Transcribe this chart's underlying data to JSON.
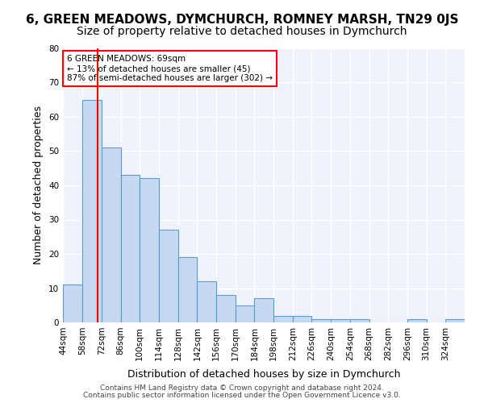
{
  "title_line1": "6, GREEN MEADOWS, DYMCHURCH, ROMNEY MARSH, TN29 0JS",
  "title_line2": "Size of property relative to detached houses in Dymchurch",
  "xlabel": "Distribution of detached houses by size in Dymchurch",
  "ylabel": "Number of detached properties",
  "categories": [
    "44sqm",
    "58sqm",
    "72sqm",
    "86sqm",
    "100sqm",
    "114sqm",
    "128sqm",
    "142sqm",
    "156sqm",
    "170sqm",
    "184sqm",
    "198sqm",
    "212sqm",
    "226sqm",
    "240sqm",
    "254sqm",
    "268sqm",
    "282sqm",
    "296sqm",
    "310sqm",
    "324sqm"
  ],
  "bar_values": [
    11,
    65,
    51,
    43,
    42,
    27,
    19,
    12,
    8,
    5,
    7,
    2,
    2,
    1,
    1,
    1,
    0,
    0,
    1,
    0,
    1
  ],
  "bar_color": "#c6d9f1",
  "bar_edge_color": "#5b9bd5",
  "vline_color": "red",
  "annotation_title": "6 GREEN MEADOWS: 69sqm",
  "annotation_line1": "← 13% of detached houses are smaller (45)",
  "annotation_line2": "87% of semi-detached houses are larger (302) →",
  "ylim": [
    0,
    80
  ],
  "yticks": [
    0,
    10,
    20,
    30,
    40,
    50,
    60,
    70,
    80
  ],
  "footer_line1": "Contains HM Land Registry data © Crown copyright and database right 2024.",
  "footer_line2": "Contains public sector information licensed under the Open Government Licence v3.0.",
  "background_color": "#eef3fb",
  "grid_color": "white",
  "title_fontsize": 11,
  "subtitle_fontsize": 10,
  "axis_label_fontsize": 9,
  "tick_fontsize": 7.5,
  "footer_fontsize": 6.5
}
